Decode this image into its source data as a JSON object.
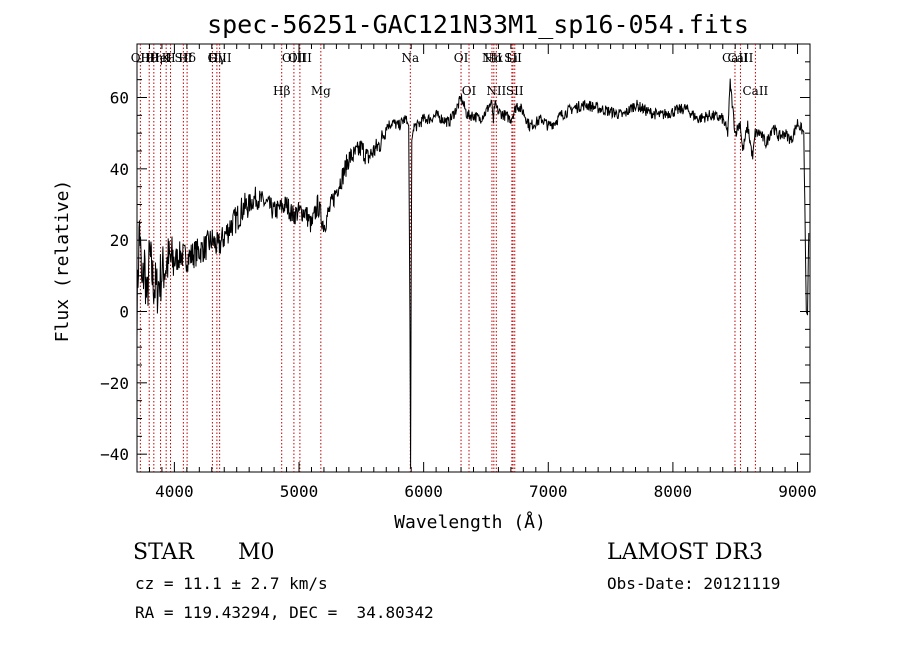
{
  "chart_data": {
    "type": "line",
    "title": "spec-56251-GAC121N33M1_sp16-054.fits",
    "xlabel": "Wavelength (Å)",
    "ylabel": "Flux (relative)",
    "xlim": [
      3700,
      9100
    ],
    "ylim": [
      -45,
      75
    ],
    "xticks": [
      4000,
      5000,
      6000,
      7000,
      8000,
      9000
    ],
    "xtick_labels": [
      "4000",
      "5000",
      "6000",
      "7000",
      "8000",
      "9000"
    ],
    "yticks": [
      -40,
      -20,
      0,
      20,
      40,
      60
    ],
    "ytick_labels": [
      "−40",
      "−20",
      "0",
      "20",
      "40",
      "60"
    ],
    "line_color": "#000000",
    "marker_color": "#c00000",
    "series": [
      {
        "name": "flux",
        "x": [
          3700,
          3720,
          3740,
          3760,
          3780,
          3800,
          3830,
          3860,
          3900,
          3950,
          4000,
          4050,
          4100,
          4150,
          4200,
          4250,
          4300,
          4350,
          4400,
          4450,
          4500,
          4550,
          4600,
          4650,
          4700,
          4750,
          4800,
          4850,
          4900,
          4950,
          5000,
          5050,
          5100,
          5150,
          5200,
          5250,
          5300,
          5350,
          5400,
          5450,
          5500,
          5550,
          5600,
          5650,
          5700,
          5750,
          5800,
          5850,
          5870,
          5880,
          5890,
          5895,
          5900,
          5905,
          5910,
          5920,
          5950,
          6000,
          6050,
          6100,
          6150,
          6200,
          6250,
          6280,
          6300,
          6330,
          6350,
          6400,
          6450,
          6500,
          6530,
          6550,
          6560,
          6565,
          6570,
          6600,
          6650,
          6700,
          6750,
          6800,
          6850,
          6900,
          6950,
          7000,
          7050,
          7100,
          7200,
          7300,
          7400,
          7500,
          7600,
          7700,
          7800,
          7900,
          8000,
          8100,
          8200,
          8300,
          8400,
          8440,
          8460,
          8500,
          8540,
          8560,
          8600,
          8640,
          8660,
          8700,
          8750,
          8800,
          8850,
          8900,
          8950,
          9000,
          9050,
          9070,
          9080,
          9090
        ],
        "y": [
          0,
          25,
          5,
          14,
          2,
          16,
          8,
          6,
          11,
          14,
          14,
          16,
          15,
          16,
          17,
          18,
          20,
          18,
          21,
          24,
          26,
          29,
          30,
          32,
          31,
          30,
          28,
          29,
          30,
          27,
          28,
          28,
          24,
          30,
          24,
          29,
          34,
          38,
          43,
          44,
          46,
          43,
          45,
          47,
          52,
          53,
          52,
          54,
          53,
          52,
          0,
          -44,
          10,
          48,
          49,
          52,
          52,
          54,
          54,
          55,
          54,
          53,
          56,
          58,
          60,
          57,
          55,
          55,
          54,
          56,
          58,
          58,
          52,
          56,
          58,
          56,
          55,
          54,
          58,
          56,
          52,
          53,
          54,
          52,
          53,
          55,
          57,
          58,
          57,
          56,
          55,
          58,
          56,
          55,
          56,
          57,
          54,
          55,
          54,
          50,
          64,
          50,
          53,
          45,
          52,
          43,
          50,
          50,
          47,
          52,
          49,
          50,
          48,
          53,
          50,
          0,
          -1,
          22
        ]
      }
    ],
    "lines": [
      {
        "label": "Hθ",
        "x": 3798,
        "pos": "upper"
      },
      {
        "label": "Hη",
        "x": 3835,
        "pos": "upper"
      },
      {
        "label": "OII",
        "x": 3727,
        "pos": "upper"
      },
      {
        "label": "K",
        "x": 3934,
        "pos": "upper"
      },
      {
        "label": "H",
        "x": 3969,
        "pos": "upper"
      },
      {
        "label": "HeI",
        "x": 3889,
        "pos": "upper"
      },
      {
        "label": "SII",
        "x": 4072,
        "pos": "upper"
      },
      {
        "label": "Hδ",
        "x": 4102,
        "pos": "upper"
      },
      {
        "label": "OIII",
        "x": 4363,
        "pos": "upper"
      },
      {
        "label": "Hγ",
        "x": 4341,
        "pos": "upper"
      },
      {
        "label": "G",
        "x": 4305,
        "pos": "upper"
      },
      {
        "label": "Hβ",
        "x": 4861,
        "pos": "lower"
      },
      {
        "label": "OIII",
        "x": 4959,
        "pos": "upper"
      },
      {
        "label": "OIII",
        "x": 5007,
        "pos": "upper"
      },
      {
        "label": "Mg",
        "x": 5175,
        "pos": "lower"
      },
      {
        "label": "Na",
        "x": 5893,
        "pos": "upper"
      },
      {
        "label": "OI",
        "x": 6300,
        "pos": "upper"
      },
      {
        "label": "OI",
        "x": 6364,
        "pos": "lower"
      },
      {
        "label": "Hα",
        "x": 6563,
        "pos": "upper"
      },
      {
        "label": "NII",
        "x": 6548,
        "pos": "upper"
      },
      {
        "label": "NII",
        "x": 6583,
        "pos": "lower"
      },
      {
        "label": "Li",
        "x": 6708,
        "pos": "upper"
      },
      {
        "label": "SII",
        "x": 6717,
        "pos": "upper"
      },
      {
        "label": "SII",
        "x": 6731,
        "pos": "lower"
      },
      {
        "label": "CaII",
        "x": 8498,
        "pos": "upper"
      },
      {
        "label": "CaII",
        "x": 8542,
        "pos": "upper"
      },
      {
        "label": "CaII",
        "x": 8662,
        "pos": "lower"
      }
    ]
  },
  "info": {
    "object_class": "STAR",
    "subclass": "M0",
    "survey": "LAMOST DR3",
    "redshift": "cz = 11.1 ± 2.7 km/s",
    "obs_date": "Obs-Date: 20121119",
    "coords": "RA = 119.43294, DEC =  34.80342"
  }
}
